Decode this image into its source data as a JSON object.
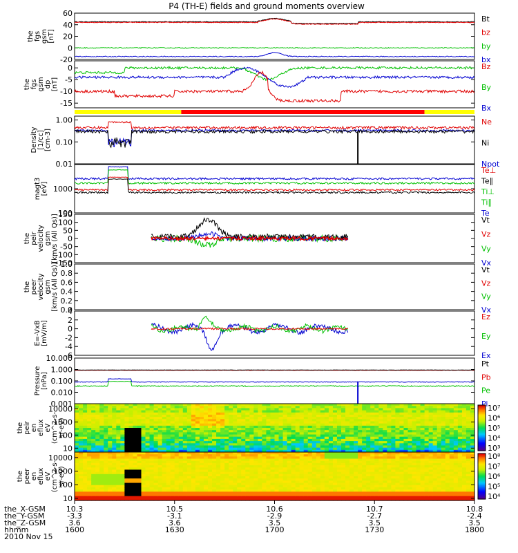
{
  "chart_data": {
    "type": "line",
    "title": "P4 (TH-E) fields and ground moments overview",
    "x_axis": {
      "rows": [
        {
          "label": "the_X-GSM",
          "values": [
            "10.3",
            "10.5",
            "10.6",
            "10.7",
            "10.8"
          ]
        },
        {
          "label": "the_Y-GSM",
          "values": [
            "-3.3",
            "-3.1",
            "-2.9",
            "-2.7",
            "-2.4"
          ]
        },
        {
          "label": "the_Z-GSM",
          "values": [
            "3.6",
            "3.6",
            "3.5",
            "3.5",
            "3.5"
          ]
        },
        {
          "label": "hhmm",
          "values": [
            "1600",
            "1630",
            "1700",
            "1730",
            "1800"
          ]
        }
      ],
      "date": "2010 Nov 15",
      "range": [
        "16:00",
        "18:00"
      ]
    },
    "panels": [
      {
        "id": "fgs-gsm",
        "ylabel": [
          "the",
          "fgs",
          "gsm",
          "[nT]"
        ],
        "ylim": [
          -20,
          60
        ],
        "ticks": [
          "60",
          "40",
          "20",
          "0",
          "-20"
        ],
        "series": [
          {
            "name": "Bt",
            "color": "#000000",
            "level": 45
          },
          {
            "name": "bz",
            "color": "#e00000",
            "level": 44
          },
          {
            "name": "by",
            "color": "#00c000",
            "level": 0
          },
          {
            "name": "bx",
            "color": "#0000d0",
            "level": -15
          }
        ]
      },
      {
        "id": "fgs-gsm-dp",
        "ylabel": [
          "the",
          "fgs",
          "gsm",
          "dp",
          "[nT]"
        ],
        "ylim": [
          -17,
          3
        ],
        "ticks": [
          "0",
          "-5",
          "-10",
          "-15"
        ],
        "series": [
          {
            "name": "Bz",
            "color": "#e00000",
            "level": -10
          },
          {
            "name": "By",
            "color": "#00c000",
            "level": 0
          },
          {
            "name": "Bx",
            "color": "#0000d0",
            "level": -4
          }
        ]
      },
      {
        "id": "density",
        "ylabel": [
          "Density",
          "[1/cc]",
          "[cm-3]"
        ],
        "scale": "log",
        "ylim": [
          0.01,
          1.5
        ],
        "ticks": [
          "1.00",
          "0.10",
          "0.01"
        ],
        "series": [
          {
            "name": "Ne",
            "color": "#e00000",
            "level": 0.45
          },
          {
            "name": "Ni",
            "color": "#000000",
            "level": 0.3
          },
          {
            "name": "Npot",
            "color": "#0000d0",
            "level": 0.33
          }
        ]
      },
      {
        "id": "magt3",
        "ylabel": [
          "magt3",
          "[eV]"
        ],
        "scale": "log",
        "ylim": [
          100,
          10000
        ],
        "ticks": [
          "1000",
          "100"
        ],
        "series": [
          {
            "name": "Te⊥",
            "color": "#e00000",
            "level": 900
          },
          {
            "name": "Te∥",
            "color": "#000000",
            "level": 700
          },
          {
            "name": "Ti⊥",
            "color": "#00c000",
            "level": 1700
          },
          {
            "name": "Ti∥",
            "color": "#00c000",
            "level": 1500
          },
          {
            "name": "Te",
            "color": "#0000d0",
            "level": 2600
          }
        ]
      },
      {
        "id": "peir-velocity",
        "ylabel": [
          "the",
          "peir",
          "velocity",
          "gsm",
          "[km/s (All Qs)]"
        ],
        "ylim": [
          -150,
          150
        ],
        "ticks": [
          "150",
          "100",
          "50",
          "0",
          "-50",
          "-100",
          "-150"
        ],
        "series": [
          {
            "name": "Vt",
            "color": "#000000"
          },
          {
            "name": "Vz",
            "color": "#e00000"
          },
          {
            "name": "Vy",
            "color": "#00c000"
          },
          {
            "name": "Vx",
            "color": "#0000d0"
          }
        ]
      },
      {
        "id": "peer-velocity",
        "ylabel": [
          "the",
          "peer",
          "velocity",
          "gsm",
          "[km/s (All Qs)]"
        ],
        "ylim": [
          0,
          1
        ],
        "ticks": [
          "1.0",
          "0.8",
          "0.6",
          "0.4",
          "0.2",
          "0.0"
        ],
        "series": [
          {
            "name": "Vt",
            "color": "#000000"
          },
          {
            "name": "Vz",
            "color": "#e00000"
          },
          {
            "name": "Vy",
            "color": "#00c000"
          },
          {
            "name": "Vx",
            "color": "#0000d0"
          }
        ]
      },
      {
        "id": "e-field",
        "ylabel": [
          "E=-VxB",
          "[mV/m]"
        ],
        "ylim": [
          -6,
          4
        ],
        "ticks": [
          "4",
          "2",
          "0",
          "-2",
          "-4",
          "-6"
        ],
        "series": [
          {
            "name": "Ez",
            "color": "#e00000"
          },
          {
            "name": "Ey",
            "color": "#00c000"
          },
          {
            "name": "Ex",
            "color": "#0000d0"
          }
        ]
      },
      {
        "id": "pressure",
        "ylabel": [
          "Pressure",
          "[nPa]"
        ],
        "scale": "log",
        "ylim": [
          0.001,
          10
        ],
        "ticks": [
          "10.000",
          "1.000",
          "0.100",
          "0.010",
          "0.001"
        ],
        "series": [
          {
            "name": "Pt",
            "color": "#000000",
            "level": 0.9
          },
          {
            "name": "Pb",
            "color": "#e00000",
            "level": 0.85
          },
          {
            "name": "Pe",
            "color": "#00c000",
            "level": 0.035
          },
          {
            "name": "Pi",
            "color": "#0000d0",
            "level": 0.08
          }
        ]
      },
      {
        "id": "peir-en-eflux",
        "type": "heatmap",
        "ylabel": [
          "the",
          "peir",
          "en",
          "eflux",
          "eV",
          "(cm^2-s-",
          "sr-eV)"
        ],
        "scale": "log",
        "ylim": [
          5,
          25000
        ],
        "ticks": [
          "10000",
          "1000",
          "100",
          "10"
        ],
        "colorbar": {
          "ticks": [
            "10⁷",
            "10⁶",
            "10⁵",
            "10⁴",
            "10³"
          ]
        }
      },
      {
        "id": "peer-en-eflux",
        "type": "heatmap",
        "ylabel": [
          "the",
          "peer",
          "en",
          "eflux",
          "eV",
          "(cm^2-s-",
          "sr-eV)"
        ],
        "scale": "log",
        "ylim": [
          7,
          25000
        ],
        "ticks": [
          "10000",
          "1000",
          "100",
          "10"
        ],
        "colorbar": {
          "ticks": [
            "10⁸",
            "10⁷",
            "10⁶",
            "10⁵",
            "10⁴"
          ]
        }
      }
    ],
    "mode_bar": [
      {
        "from": "16:00",
        "to": "16:32",
        "color": "#ffff00"
      },
      {
        "from": "16:32",
        "to": "17:45",
        "color": "#ff0000"
      },
      {
        "from": "17:45",
        "to": "18:00",
        "color": "#ffff00"
      }
    ]
  }
}
